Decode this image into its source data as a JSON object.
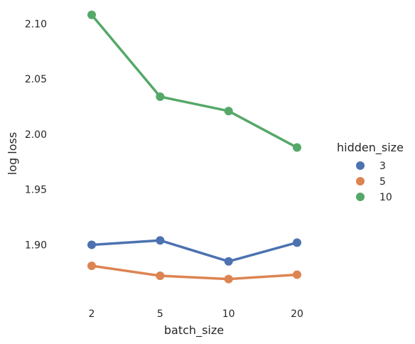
{
  "chart_data": {
    "type": "line",
    "xlabel": "batch_size",
    "ylabel": "log loss",
    "categories": [
      "2",
      "5",
      "10",
      "20"
    ],
    "ylim": [
      1.845,
      2.115
    ],
    "yticks": [
      "1.90",
      "1.95",
      "2.00",
      "2.05",
      "2.10"
    ],
    "grid": false,
    "legend": {
      "title": "hidden_size",
      "position": "right"
    },
    "series": [
      {
        "name": "3",
        "color": "#4c72b0",
        "values": [
          1.9,
          1.904,
          1.885,
          1.902
        ]
      },
      {
        "name": "5",
        "color": "#dd8452",
        "values": [
          1.881,
          1.872,
          1.869,
          1.873
        ]
      },
      {
        "name": "10",
        "color": "#55a868",
        "values": [
          2.108,
          2.034,
          2.021,
          1.988
        ]
      }
    ]
  }
}
